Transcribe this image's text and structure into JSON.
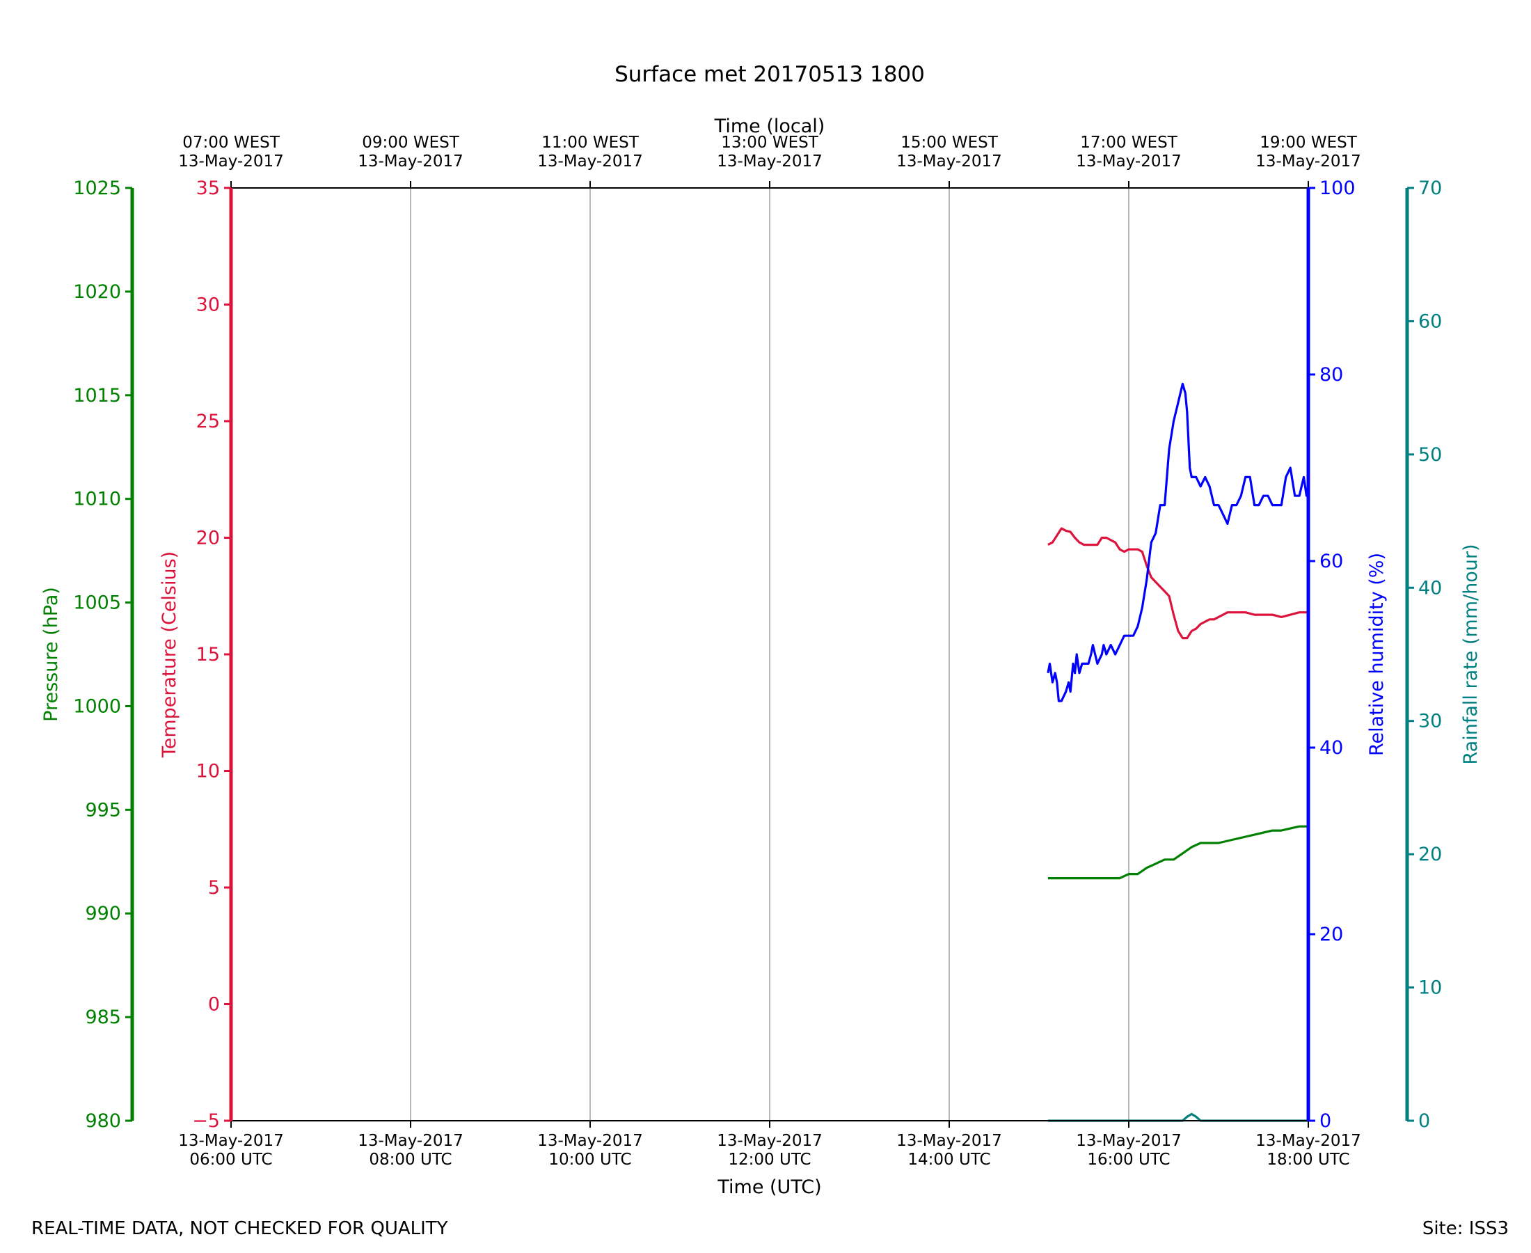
{
  "chart_data": {
    "type": "line",
    "title": "Surface met 20170513 1800",
    "footer_left": "REAL-TIME DATA, NOT CHECKED FOR QUALITY",
    "footer_right": "Site: ISS3",
    "x_axis": {
      "label": "Time (UTC)",
      "range_hours_utc": [
        6,
        18
      ],
      "grid": true,
      "ticks": [
        {
          "hour": 6,
          "line1": "13-May-2017",
          "line2": "06:00 UTC"
        },
        {
          "hour": 8,
          "line1": "13-May-2017",
          "line2": "08:00 UTC"
        },
        {
          "hour": 10,
          "line1": "13-May-2017",
          "line2": "10:00 UTC"
        },
        {
          "hour": 12,
          "line1": "13-May-2017",
          "line2": "12:00 UTC"
        },
        {
          "hour": 14,
          "line1": "13-May-2017",
          "line2": "14:00 UTC"
        },
        {
          "hour": 16,
          "line1": "13-May-2017",
          "line2": "16:00 UTC"
        },
        {
          "hour": 18,
          "line1": "13-May-2017",
          "line2": "18:00 UTC"
        }
      ]
    },
    "x_axis_top": {
      "label": "Time (local)",
      "ticks": [
        {
          "hour": 6,
          "line1": "07:00 WEST",
          "line2": "13-May-2017"
        },
        {
          "hour": 8,
          "line1": "09:00 WEST",
          "line2": "13-May-2017"
        },
        {
          "hour": 10,
          "line1": "11:00 WEST",
          "line2": "13-May-2017"
        },
        {
          "hour": 12,
          "line1": "13:00 WEST",
          "line2": "13-May-2017"
        },
        {
          "hour": 14,
          "line1": "15:00 WEST",
          "line2": "13-May-2017"
        },
        {
          "hour": 16,
          "line1": "17:00 WEST",
          "line2": "13-May-2017"
        },
        {
          "hour": 18,
          "line1": "19:00 WEST",
          "line2": "13-May-2017"
        }
      ]
    },
    "y_axes": {
      "pressure": {
        "label": "Pressure (hPa)",
        "range": [
          980,
          1025
        ],
        "ticks": [
          "980",
          "985",
          "990",
          "995",
          "1000",
          "1005",
          "1010",
          "1015",
          "1020",
          "1025"
        ],
        "color": "#008000"
      },
      "temperature": {
        "label": "Temperature (Celsius)",
        "range": [
          -5,
          35
        ],
        "ticks": [
          "−5",
          "0",
          "5",
          "10",
          "15",
          "20",
          "25",
          "30",
          "35"
        ],
        "color": "#dc143c"
      },
      "humidity": {
        "label": "Relative humidity (%)",
        "range": [
          0,
          100
        ],
        "ticks": [
          "0",
          "20",
          "40",
          "60",
          "80",
          "100"
        ],
        "color": "#0000ff"
      },
      "rainfall": {
        "label": "Rainfall rate (mm/hour)",
        "range": [
          0,
          70
        ],
        "ticks": [
          "0",
          "10",
          "20",
          "30",
          "40",
          "50",
          "60",
          "70"
        ],
        "color": "#008080"
      }
    },
    "series": [
      {
        "key": "temperature",
        "color": "#dc143c",
        "x": [
          15.1,
          15.15,
          15.25,
          15.3,
          15.35,
          15.4,
          15.45,
          15.5,
          15.55,
          15.65,
          15.7,
          15.75,
          15.85,
          15.9,
          15.95,
          16.0,
          16.05,
          16.1,
          16.15,
          16.2,
          16.25,
          16.3,
          16.35,
          16.4,
          16.45,
          16.5,
          16.55,
          16.6,
          16.65,
          16.7,
          16.75,
          16.8,
          16.85,
          16.9,
          16.95,
          17.0,
          17.05,
          17.1,
          17.2,
          17.3,
          17.4,
          17.5,
          17.6,
          17.7,
          17.8,
          17.9,
          18.0
        ],
        "y": [
          19.7,
          19.8,
          20.4,
          20.3,
          20.25,
          20.0,
          19.8,
          19.7,
          19.7,
          19.7,
          20.0,
          20.0,
          19.8,
          19.5,
          19.4,
          19.5,
          19.5,
          19.5,
          19.4,
          18.8,
          18.3,
          18.1,
          17.9,
          17.7,
          17.5,
          16.7,
          16.0,
          15.7,
          15.7,
          16.0,
          16.1,
          16.3,
          16.4,
          16.5,
          16.5,
          16.6,
          16.7,
          16.8,
          16.8,
          16.8,
          16.7,
          16.7,
          16.7,
          16.6,
          16.7,
          16.8,
          16.8
        ]
      },
      {
        "key": "humidity",
        "color": "#0000ff",
        "x": [
          15.1,
          15.12,
          15.15,
          15.18,
          15.2,
          15.22,
          15.25,
          15.3,
          15.33,
          15.35,
          15.38,
          15.4,
          15.42,
          15.45,
          15.48,
          15.5,
          15.55,
          15.58,
          15.6,
          15.65,
          15.7,
          15.72,
          15.75,
          15.8,
          15.85,
          15.9,
          15.95,
          16.0,
          16.05,
          16.1,
          16.15,
          16.2,
          16.25,
          16.3,
          16.35,
          16.4,
          16.45,
          16.5,
          16.55,
          16.6,
          16.63,
          16.65,
          16.68,
          16.7,
          16.72,
          16.75,
          16.8,
          16.85,
          16.9,
          16.95,
          17.0,
          17.05,
          17.1,
          17.15,
          17.2,
          17.25,
          17.3,
          17.35,
          17.4,
          17.45,
          17.5,
          17.55,
          17.6,
          17.65,
          17.7,
          17.75,
          17.8,
          17.85,
          17.9,
          17.95,
          17.98,
          18.0
        ],
        "y": [
          48,
          49,
          47,
          48,
          47,
          45,
          45,
          46,
          47,
          46,
          49,
          48,
          50,
          48,
          49,
          49,
          49,
          50,
          51,
          49,
          50,
          51,
          50,
          51,
          50,
          51,
          52,
          52,
          52,
          53,
          55,
          58,
          62,
          63,
          66,
          66,
          72,
          75,
          77,
          79,
          78,
          76,
          70,
          69,
          69,
          69,
          68,
          69,
          68,
          66,
          66,
          65,
          64,
          66,
          66,
          67,
          69,
          69,
          66,
          66,
          67,
          67,
          66,
          66,
          66,
          69,
          70,
          67,
          67,
          69,
          67,
          67
        ]
      },
      {
        "key": "pressure",
        "color": "#008000",
        "x": [
          15.1,
          15.3,
          15.5,
          15.7,
          15.9,
          16.0,
          16.1,
          16.2,
          16.3,
          16.4,
          16.5,
          16.6,
          16.7,
          16.8,
          16.9,
          17.0,
          17.1,
          17.2,
          17.3,
          17.4,
          17.5,
          17.6,
          17.7,
          17.8,
          17.9,
          18.0
        ],
        "y": [
          991.7,
          991.7,
          991.7,
          991.7,
          991.7,
          991.9,
          991.9,
          992.2,
          992.4,
          992.6,
          992.6,
          992.9,
          993.2,
          993.4,
          993.4,
          993.4,
          993.5,
          993.6,
          993.7,
          993.8,
          993.9,
          994.0,
          994.0,
          994.1,
          994.2,
          994.2
        ]
      },
      {
        "key": "rainfall",
        "color": "#008080",
        "x": [
          15.1,
          15.5,
          16.0,
          16.6,
          16.65,
          16.7,
          16.75,
          16.8,
          17.0,
          17.5,
          18.0
        ],
        "y": [
          0.0,
          0.0,
          0.0,
          0.0,
          0.3,
          0.5,
          0.3,
          0.0,
          0.0,
          0.0,
          0.0
        ]
      }
    ]
  }
}
